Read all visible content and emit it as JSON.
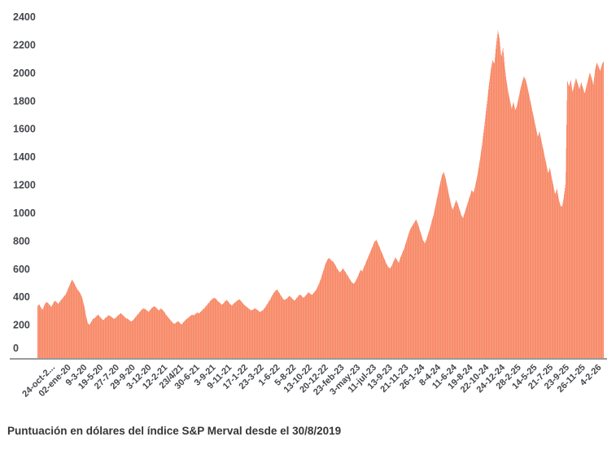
{
  "chart_data": {
    "type": "area",
    "title": "Puntuación en dólares del índice S&P Merval desde el 30/8/2019",
    "xlabel": "",
    "ylabel": "",
    "ylim": [
      0,
      2400
    ],
    "grid": false,
    "legend": "none",
    "y_ticks": [
      0,
      200,
      400,
      600,
      800,
      1000,
      1200,
      1400,
      1600,
      1800,
      2000,
      2200,
      2400
    ],
    "x_tick_labels": [
      "24-oct-2...",
      "02-ene-20",
      "9-3-20",
      "19-5-20",
      "27-7-20",
      "29-9-20",
      "3-12-20",
      "12-2-21",
      "23/4/21",
      "30-6-21",
      "3-9-21",
      "9-11-21",
      "17-1-22",
      "23-3-22",
      "1-6-22",
      "5-8-22",
      "13-10-22",
      "20-12-22",
      "23-feb-23",
      "3-may-23",
      "11-jul-23",
      "13-9-23",
      "21-11-23",
      "26-1-24",
      "8-4-24",
      "11-6-24",
      "19-8-24",
      "22-10-24",
      "24-12-24",
      "28-2-25",
      "14-5-25",
      "21-7-25",
      "23-9-25",
      "26-11-25",
      "4-2-26"
    ],
    "colors": {
      "area": "#f78c6b",
      "area_stripe": "#fa9e82",
      "axis_line": "#9a9a9a",
      "tick_text": "#43464b",
      "caption_text": "#363636"
    },
    "values": [
      370,
      385,
      360,
      345,
      378,
      400,
      395,
      380,
      365,
      390,
      410,
      400,
      385,
      405,
      420,
      435,
      450,
      475,
      505,
      535,
      560,
      540,
      515,
      490,
      475,
      455,
      420,
      370,
      300,
      250,
      235,
      260,
      280,
      285,
      300,
      310,
      295,
      280,
      270,
      285,
      295,
      305,
      300,
      290,
      280,
      285,
      300,
      310,
      320,
      310,
      295,
      285,
      280,
      270,
      260,
      270,
      285,
      300,
      315,
      330,
      345,
      355,
      350,
      340,
      330,
      345,
      360,
      370,
      365,
      350,
      340,
      355,
      345,
      330,
      310,
      295,
      280,
      265,
      250,
      245,
      255,
      265,
      250,
      240,
      255,
      270,
      280,
      290,
      300,
      310,
      305,
      315,
      325,
      320,
      330,
      345,
      355,
      370,
      385,
      400,
      415,
      425,
      430,
      420,
      405,
      395,
      380,
      390,
      405,
      415,
      400,
      385,
      375,
      390,
      400,
      410,
      420,
      410,
      395,
      380,
      370,
      360,
      350,
      340,
      345,
      355,
      350,
      340,
      330,
      335,
      345,
      360,
      380,
      400,
      420,
      445,
      465,
      480,
      490,
      470,
      450,
      430,
      415,
      420,
      430,
      445,
      435,
      420,
      410,
      425,
      440,
      455,
      445,
      430,
      440,
      455,
      470,
      460,
      450,
      465,
      480,
      500,
      530,
      560,
      600,
      640,
      680,
      705,
      715,
      700,
      690,
      675,
      650,
      630,
      610,
      625,
      640,
      620,
      600,
      580,
      560,
      540,
      530,
      545,
      570,
      600,
      630,
      620,
      650,
      680,
      710,
      740,
      770,
      800,
      830,
      845,
      820,
      790,
      760,
      730,
      700,
      670,
      650,
      640,
      660,
      690,
      720,
      700,
      680,
      720,
      750,
      780,
      820,
      860,
      900,
      930,
      950,
      970,
      990,
      960,
      920,
      880,
      840,
      820,
      850,
      890,
      930,
      980,
      1020,
      1080,
      1140,
      1200,
      1260,
      1310,
      1330,
      1280,
      1220,
      1160,
      1100,
      1060,
      1090,
      1130,
      1100,
      1060,
      1020,
      1000,
      1040,
      1080,
      1120,
      1160,
      1200,
      1180,
      1230,
      1290,
      1360,
      1440,
      1530,
      1630,
      1740,
      1850,
      1960,
      2060,
      2130,
      2100,
      2230,
      2340,
      2280,
      2150,
      2220,
      2080,
      1980,
      1900,
      1840,
      1780,
      1830,
      1770,
      1800,
      1860,
      1920,
      1970,
      2010,
      1990,
      1940,
      1880,
      1820,
      1760,
      1700,
      1640,
      1580,
      1620,
      1560,
      1500,
      1440,
      1380,
      1320,
      1360,
      1290,
      1230,
      1170,
      1210,
      1140,
      1090,
      1080,
      1150,
      1250,
      1980,
      1940,
      1990,
      1900,
      1950,
      2000,
      1960,
      1920,
      1970,
      1930,
      1890,
      1940,
      1990,
      2040,
      2000,
      1950,
      2060,
      2110,
      2080,
      2050,
      2100,
      2120
    ]
  }
}
